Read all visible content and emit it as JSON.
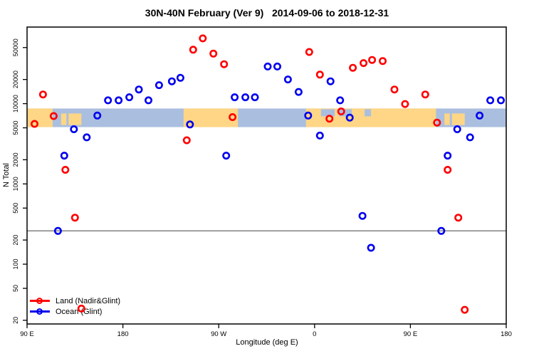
{
  "title": "30N-40N February (Ver 9)   2014-09-06 to 2018-12-31",
  "axes": {
    "x": {
      "label": "Longitude (deg E)",
      "range": [
        90,
        540
      ],
      "ticks": [
        {
          "lon": 90,
          "label": "90 E"
        },
        {
          "lon": 180,
          "label": "180"
        },
        {
          "lon": 270,
          "label": "90 W"
        },
        {
          "lon": 360,
          "label": "0"
        },
        {
          "lon": 450,
          "label": "90 E"
        },
        {
          "lon": 540,
          "label": "180"
        }
      ]
    },
    "y": {
      "label": "N Total",
      "scale": "log",
      "range": [
        18,
        90000
      ],
      "ticks": [
        20,
        50,
        100,
        200,
        500,
        1000,
        2000,
        5000,
        10000,
        20000,
        50000
      ]
    }
  },
  "legend": {
    "items": [
      {
        "label": "Land (Nadir&Glint)",
        "color": "#FF0000"
      },
      {
        "label": "Ocean (Glint)",
        "color": "#0000EE"
      }
    ]
  },
  "colors": {
    "land_series": "#FF0000",
    "ocean_series": "#0000EE",
    "band_ocean": "#AABFDF",
    "band_land": "#FFD685",
    "threshold_line": "#808080",
    "axis": "#000000"
  },
  "chart_data": {
    "type": "scatter",
    "title": "30N-40N February (Ver 9)   2014-09-06 to 2018-12-31",
    "xlabel": "Longitude (deg E)",
    "ylabel": "N Total",
    "xlim": [
      90,
      540
    ],
    "ylim": [
      18,
      90000
    ],
    "y_scale": "log",
    "grid": false,
    "legend_position": "bottom-left",
    "threshold_line_y": 260,
    "map_band": {
      "top_value": 8700,
      "bottom_value": 5100,
      "land_segments": [
        [
          90,
          114
        ],
        [
          237,
          288
        ],
        [
          352,
          474
        ]
      ],
      "island_segments": [
        [
          122,
          127
        ],
        [
          129,
          141
        ],
        [
          482,
          487
        ],
        [
          489,
          501
        ]
      ],
      "sea_patches": [
        [
          366,
          379
        ],
        [
          383,
          395
        ],
        [
          407,
          413
        ]
      ]
    },
    "series": [
      {
        "name": "Land (Nadir&Glint)",
        "color": "#FF0000",
        "points": [
          [
            97,
            5600
          ],
          [
            105,
            13000
          ],
          [
            115,
            7000
          ],
          [
            126,
            1500
          ],
          [
            135,
            380
          ],
          [
            141,
            28
          ],
          [
            240,
            3500
          ],
          [
            246,
            47000
          ],
          [
            255,
            65000
          ],
          [
            265,
            42000
          ],
          [
            275,
            31000
          ],
          [
            283,
            6800
          ],
          [
            355,
            44000
          ],
          [
            365,
            23000
          ],
          [
            374,
            6500
          ],
          [
            385,
            8000
          ],
          [
            396,
            28000
          ],
          [
            406,
            32000
          ],
          [
            414,
            35000
          ],
          [
            424,
            34000
          ],
          [
            435,
            15000
          ],
          [
            445,
            9900
          ],
          [
            464,
            13000
          ],
          [
            475,
            5800
          ],
          [
            485,
            1500
          ],
          [
            495,
            380
          ],
          [
            501,
            27
          ]
        ]
      },
      {
        "name": "Ocean (Glint)",
        "color": "#0000EE",
        "points": [
          [
            119,
            260
          ],
          [
            125,
            2250
          ],
          [
            134,
            4800
          ],
          [
            146,
            3800
          ],
          [
            156,
            7100
          ],
          [
            166,
            11000
          ],
          [
            176,
            11000
          ],
          [
            186,
            12000
          ],
          [
            195,
            15000
          ],
          [
            204,
            11000
          ],
          [
            214,
            17000
          ],
          [
            226,
            19000
          ],
          [
            234,
            21000
          ],
          [
            243,
            5500
          ],
          [
            277,
            2250
          ],
          [
            285,
            12000
          ],
          [
            295,
            12000
          ],
          [
            304,
            12000
          ],
          [
            316,
            29000
          ],
          [
            325,
            29000
          ],
          [
            335,
            20000
          ],
          [
            345,
            14000
          ],
          [
            354,
            7100
          ],
          [
            365,
            4000
          ],
          [
            375,
            19000
          ],
          [
            384,
            11000
          ],
          [
            393,
            6700
          ],
          [
            405,
            400
          ],
          [
            413,
            160
          ],
          [
            479,
            260
          ],
          [
            485,
            2250
          ],
          [
            494,
            4800
          ],
          [
            506,
            3800
          ],
          [
            515,
            7100
          ],
          [
            525,
            11000
          ],
          [
            535,
            11000
          ]
        ]
      }
    ]
  }
}
